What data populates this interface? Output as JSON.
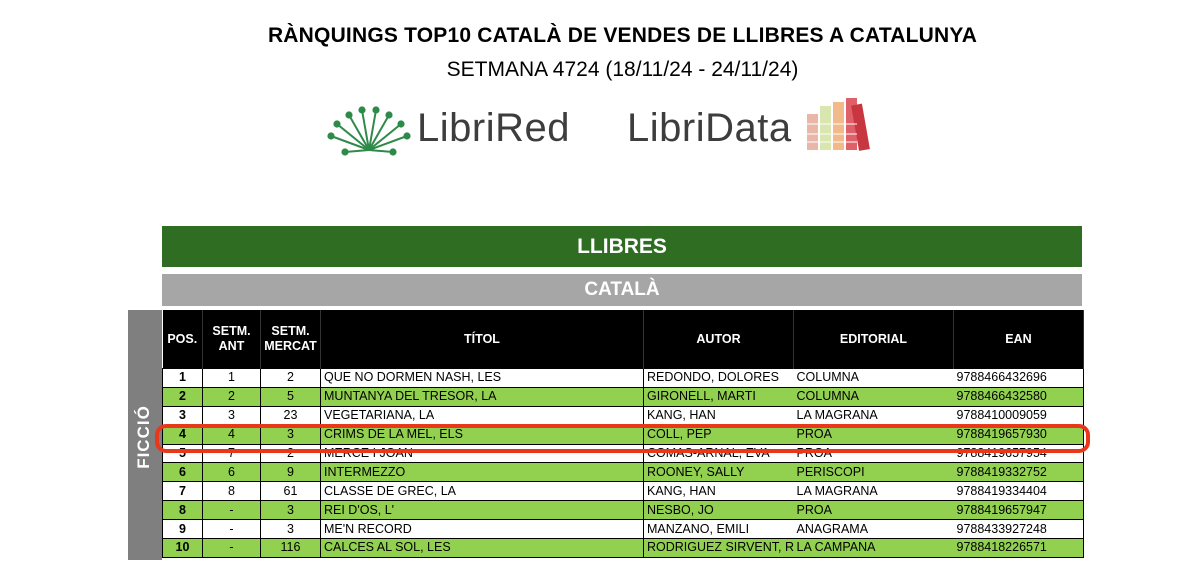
{
  "header": {
    "title": "RÀNQUINGS TOP10 CATALÀ DE VENDES DE LLIBRES A CATALUNYA",
    "subtitle": "SETMANA 4724 (18/11/24 - 24/11/24)"
  },
  "logos": {
    "librired": "LibriRed",
    "libridata": "LibriData"
  },
  "bands": {
    "section": "LLIBRES",
    "language": "CATALÀ",
    "category": "FICCIÓ"
  },
  "table": {
    "columns": [
      "POS.",
      "SETM. ANT",
      "SETM. MERCAT",
      "TÍTOL",
      "AUTOR",
      "EDITORIAL",
      "EAN"
    ],
    "rows": [
      {
        "pos": "1",
        "ant": "1",
        "mercat": "2",
        "titol": "QUE NO DORMEN NASH, LES",
        "autor": "REDONDO, DOLORES",
        "editorial": "COLUMNA",
        "ean": "9788466432696"
      },
      {
        "pos": "2",
        "ant": "2",
        "mercat": "5",
        "titol": "MUNTANYA DEL TRESOR, LA",
        "autor": "GIRONELL, MARTI",
        "editorial": "COLUMNA",
        "ean": "9788466432580"
      },
      {
        "pos": "3",
        "ant": "3",
        "mercat": "23",
        "titol": "VEGETARIANA, LA",
        "autor": "KANG, HAN",
        "editorial": "LA MAGRANA",
        "ean": "9788410009059"
      },
      {
        "pos": "4",
        "ant": "4",
        "mercat": "3",
        "titol": "CRIMS DE LA MEL, ELS",
        "autor": "COLL, PEP",
        "editorial": "PROA",
        "ean": "9788419657930"
      },
      {
        "pos": "5",
        "ant": "7",
        "mercat": "2",
        "titol": "MERCE I JOAN",
        "autor": "COMAS-ARNAL, EVA",
        "editorial": "PROA",
        "ean": "9788419657954"
      },
      {
        "pos": "6",
        "ant": "6",
        "mercat": "9",
        "titol": "INTERMEZZO",
        "autor": "ROONEY, SALLY",
        "editorial": "PERISCOPI",
        "ean": "9788419332752"
      },
      {
        "pos": "7",
        "ant": "8",
        "mercat": "61",
        "titol": "CLASSE DE GREC, LA",
        "autor": "KANG, HAN",
        "editorial": "LA MAGRANA",
        "ean": "9788419334404"
      },
      {
        "pos": "8",
        "ant": "-",
        "mercat": "3",
        "titol": "REI D'OS, L'",
        "autor": "NESBO, JO",
        "editorial": "PROA",
        "ean": "9788419657947"
      },
      {
        "pos": "9",
        "ant": "-",
        "mercat": "3",
        "titol": "ME'N RECORD",
        "autor": "MANZANO, EMILI",
        "editorial": "ANAGRAMA",
        "ean": "9788433927248"
      },
      {
        "pos": "10",
        "ant": "-",
        "mercat": "116",
        "titol": "CALCES AL SOL, LES",
        "autor": "RODRIGUEZ SIRVENT, REI",
        "editorial": "LA CAMPANA",
        "ean": "9788418226571"
      }
    ],
    "highlighted_position": "4"
  },
  "colors": {
    "band_green": "#2e6d22",
    "band_gray": "#a6a6a6",
    "row_green": "#92d050",
    "highlight": "#e8371a"
  }
}
